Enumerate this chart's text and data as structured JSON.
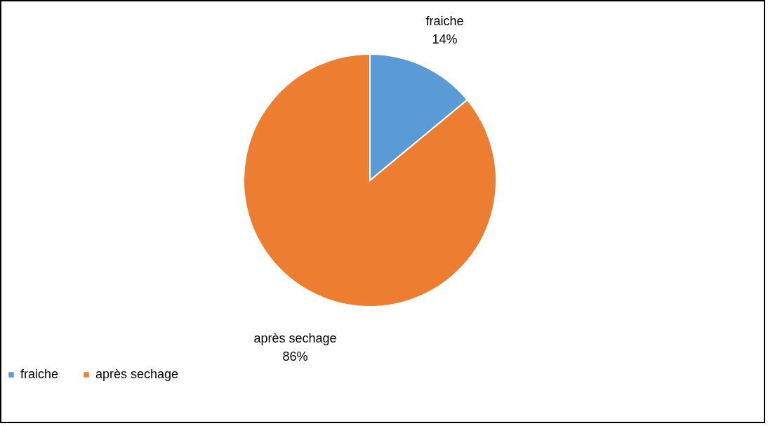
{
  "chart_data": {
    "type": "pie",
    "categories": [
      "fraiche",
      "après sechage"
    ],
    "values": [
      14,
      86
    ],
    "colors": [
      "#5b9bd5",
      "#ed7d31"
    ],
    "value_labels": [
      "14%",
      "86%"
    ],
    "legend": "bottom"
  }
}
